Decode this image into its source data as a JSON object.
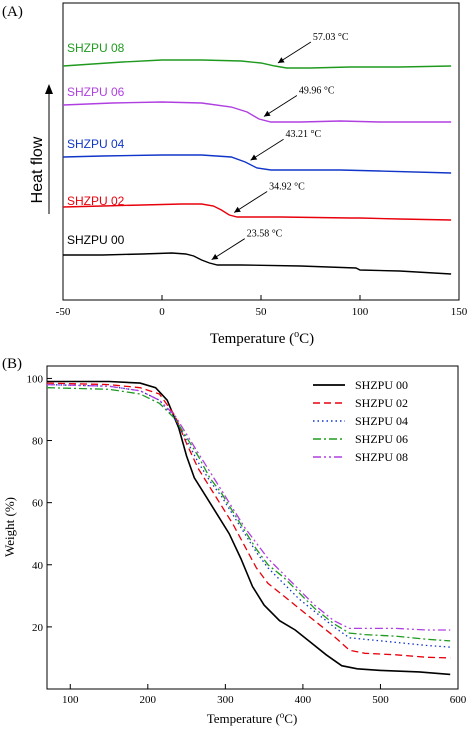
{
  "chart_data": [
    {
      "type": "line",
      "panel_label": "(A)",
      "xlabel_main": "Temperature (",
      "xlabel_sup": "o",
      "xlabel_end": "C)",
      "ylabel": "Heat flow",
      "xlim": [
        -50,
        150
      ],
      "xticks": [
        "-50",
        "0",
        "50",
        "100",
        "150"
      ],
      "series": [
        {
          "name": "SHZPU 00",
          "color": "#000000",
          "tg_label": "23.58 °C",
          "tg_x": 23.58,
          "points": [
            [
              -50,
              255
            ],
            [
              -30,
              255
            ],
            [
              -10,
              254
            ],
            [
              5,
              253
            ],
            [
              12,
              254
            ],
            [
              16,
              256
            ],
            [
              20,
              260
            ],
            [
              24,
              263
            ],
            [
              28,
              265
            ],
            [
              40,
              265
            ],
            [
              70,
              266
            ],
            [
              98,
              268
            ],
            [
              100,
              270
            ],
            [
              120,
              271
            ],
            [
              146,
              274
            ]
          ]
        },
        {
          "name": "SHZPU 02",
          "color": "#e8000b",
          "tg_label": "34.92 °C",
          "tg_x": 34.92,
          "points": [
            [
              -50,
              207
            ],
            [
              -30,
              206
            ],
            [
              -10,
              205
            ],
            [
              10,
              204
            ],
            [
              20,
              204
            ],
            [
              26,
              206
            ],
            [
              30,
              210
            ],
            [
              34,
              215
            ],
            [
              38,
              217
            ],
            [
              60,
              217
            ],
            [
              95,
              218
            ],
            [
              100,
              218
            ],
            [
              120,
              219
            ],
            [
              146,
              220
            ]
          ]
        },
        {
          "name": "SHZPU 04",
          "color": "#1035c9",
          "tg_label": "43.21 °C",
          "tg_x": 43.21,
          "points": [
            [
              -50,
              157
            ],
            [
              -30,
              156
            ],
            [
              0,
              155
            ],
            [
              20,
              155
            ],
            [
              35,
              157
            ],
            [
              42,
              162
            ],
            [
              48,
              168
            ],
            [
              55,
              170
            ],
            [
              70,
              170
            ],
            [
              90,
              170
            ],
            [
              110,
              171
            ],
            [
              146,
              173
            ]
          ]
        },
        {
          "name": "SHZPU 06",
          "color": "#b03fe0",
          "tg_label": "49.96 °C",
          "tg_x": 49.96,
          "points": [
            [
              -50,
              105
            ],
            [
              -25,
              103
            ],
            [
              0,
              102
            ],
            [
              20,
              103
            ],
            [
              35,
              107
            ],
            [
              43,
              112
            ],
            [
              49,
              119
            ],
            [
              55,
              122
            ],
            [
              70,
              122
            ],
            [
              90,
              121
            ],
            [
              110,
              122
            ],
            [
              146,
              122
            ]
          ]
        },
        {
          "name": "SHZPU 08",
          "color": "#1f9a1f",
          "tg_label": "57.03 °C",
          "tg_x": 57.03,
          "points": [
            [
              -50,
              66
            ],
            [
              -20,
              62
            ],
            [
              0,
              60
            ],
            [
              20,
              60
            ],
            [
              40,
              61
            ],
            [
              50,
              63
            ],
            [
              57,
              66
            ],
            [
              63,
              68
            ],
            [
              75,
              68
            ],
            [
              95,
              67
            ],
            [
              120,
              67
            ],
            [
              146,
              66
            ]
          ]
        }
      ]
    },
    {
      "type": "line",
      "panel_label": "(B)",
      "xlabel_main": "Temperature (",
      "xlabel_sup": "o",
      "xlabel_end": "C)",
      "ylabel": "Weight (%)",
      "xlim": [
        70,
        600
      ],
      "ylim": [
        0,
        104
      ],
      "xticks": [
        100,
        200,
        300,
        400,
        500,
        600
      ],
      "yticks": [
        20,
        40,
        60,
        80,
        100
      ],
      "legend_position": "top-right",
      "series": [
        {
          "name": "SHZPU 00",
          "color": "#000000",
          "dash": "",
          "points": [
            [
              70,
              99
            ],
            [
              150,
              99
            ],
            [
              190,
              98.5
            ],
            [
              210,
              97
            ],
            [
              225,
              93
            ],
            [
              240,
              84
            ],
            [
              250,
              75
            ],
            [
              260,
              68
            ],
            [
              275,
              62
            ],
            [
              290,
              56
            ],
            [
              305,
              50
            ],
            [
              320,
              42
            ],
            [
              335,
              33
            ],
            [
              350,
              27
            ],
            [
              370,
              22
            ],
            [
              390,
              19
            ],
            [
              410,
              15
            ],
            [
              430,
              11
            ],
            [
              450,
              7.5
            ],
            [
              470,
              6.5
            ],
            [
              500,
              6
            ],
            [
              550,
              5.5
            ],
            [
              590,
              4.7
            ]
          ]
        },
        {
          "name": "SHZPU 02",
          "color": "#e8000b",
          "dash": "7,4",
          "points": [
            [
              70,
              98.5
            ],
            [
              150,
              98
            ],
            [
              190,
              97
            ],
            [
              215,
              95
            ],
            [
              235,
              88
            ],
            [
              250,
              79
            ],
            [
              265,
              71
            ],
            [
              280,
              65
            ],
            [
              295,
              59
            ],
            [
              310,
              53
            ],
            [
              325,
              46
            ],
            [
              340,
              39
            ],
            [
              355,
              34
            ],
            [
              375,
              30
            ],
            [
              395,
              26
            ],
            [
              415,
              22
            ],
            [
              440,
              17
            ],
            [
              460,
              12.5
            ],
            [
              480,
              11.5
            ],
            [
              520,
              11
            ],
            [
              560,
              10.2
            ],
            [
              590,
              10
            ]
          ]
        },
        {
          "name": "SHZPU 04",
          "color": "#1035c9",
          "dash": "1.5,3",
          "points": [
            [
              70,
              98
            ],
            [
              150,
              97.5
            ],
            [
              190,
              96
            ],
            [
              215,
              93
            ],
            [
              235,
              87
            ],
            [
              250,
              80
            ],
            [
              265,
              73
            ],
            [
              280,
              67
            ],
            [
              295,
              62
            ],
            [
              310,
              56
            ],
            [
              325,
              50
            ],
            [
              340,
              44
            ],
            [
              355,
              39
            ],
            [
              375,
              34
            ],
            [
              395,
              29
            ],
            [
              415,
              25
            ],
            [
              440,
              20
            ],
            [
              460,
              16.5
            ],
            [
              480,
              16
            ],
            [
              520,
              15
            ],
            [
              560,
              14
            ],
            [
              590,
              13.5
            ]
          ]
        },
        {
          "name": "SHZPU 06",
          "color": "#1f9a1f",
          "dash": "8,3,2,3",
          "points": [
            [
              70,
              97
            ],
            [
              150,
              96.5
            ],
            [
              190,
              95
            ],
            [
              215,
              92
            ],
            [
              235,
              87
            ],
            [
              250,
              81
            ],
            [
              265,
              75
            ],
            [
              280,
              68
            ],
            [
              295,
              63
            ],
            [
              310,
              57
            ],
            [
              325,
              51
            ],
            [
              340,
              45
            ],
            [
              355,
              40
            ],
            [
              375,
              36
            ],
            [
              395,
              31
            ],
            [
              415,
              26
            ],
            [
              440,
              21
            ],
            [
              460,
              18
            ],
            [
              480,
              17.5
            ],
            [
              520,
              17
            ],
            [
              560,
              16
            ],
            [
              590,
              15.5
            ]
          ]
        },
        {
          "name": "SHZPU 08",
          "color": "#b03fe0",
          "dash": "8,3,2,3,2,3",
          "points": [
            [
              70,
              98
            ],
            [
              150,
              97.5
            ],
            [
              190,
              96
            ],
            [
              215,
              93
            ],
            [
              235,
              88
            ],
            [
              250,
              82
            ],
            [
              265,
              76
            ],
            [
              280,
              70
            ],
            [
              295,
              64
            ],
            [
              310,
              58
            ],
            [
              325,
              52
            ],
            [
              340,
              47
            ],
            [
              355,
              42
            ],
            [
              375,
              37
            ],
            [
              395,
              32
            ],
            [
              415,
              27
            ],
            [
              440,
              22
            ],
            [
              460,
              19.5
            ],
            [
              480,
              19.5
            ],
            [
              520,
              19.5
            ],
            [
              560,
              19
            ],
            [
              590,
              19
            ]
          ]
        }
      ]
    }
  ]
}
